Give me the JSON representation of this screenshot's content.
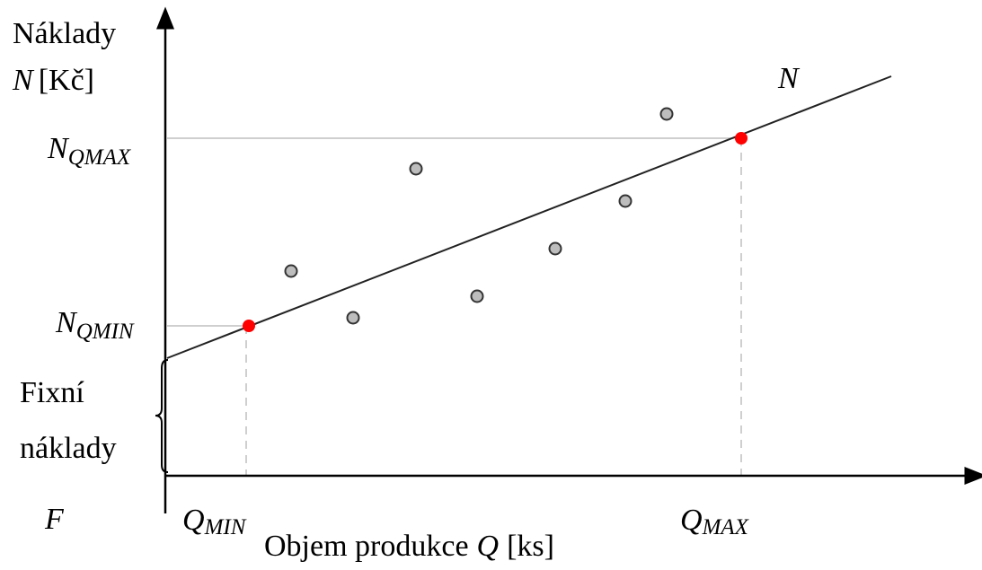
{
  "diagram": {
    "y_axis_label_line1": "Náklady",
    "y_axis_label_symbol": "N",
    "y_axis_label_unit": "[Kč]",
    "line_label": "N",
    "n_qmax": {
      "main": "N",
      "sub": "QMAX"
    },
    "n_qmin": {
      "main": "N",
      "sub": "QMIN"
    },
    "fixed_costs_line1": "Fixní",
    "fixed_costs_line2": "náklady",
    "f_label": "F",
    "q_min": {
      "main": "Q",
      "sub": "MIN"
    },
    "q_max": {
      "main": "Q",
      "sub": "MAX"
    },
    "x_axis_label_text": "Objem produkce",
    "x_axis_label_symbol": "Q",
    "x_axis_label_unit": "[ks]"
  },
  "colors": {
    "axis": "#000000",
    "line": "#222222",
    "guide": "#bfbfbf",
    "dashed": "#bfbfbf",
    "extreme_point": "#ff0000",
    "data_point_fill": "#bdbdbd",
    "data_point_stroke": "#333333"
  }
}
